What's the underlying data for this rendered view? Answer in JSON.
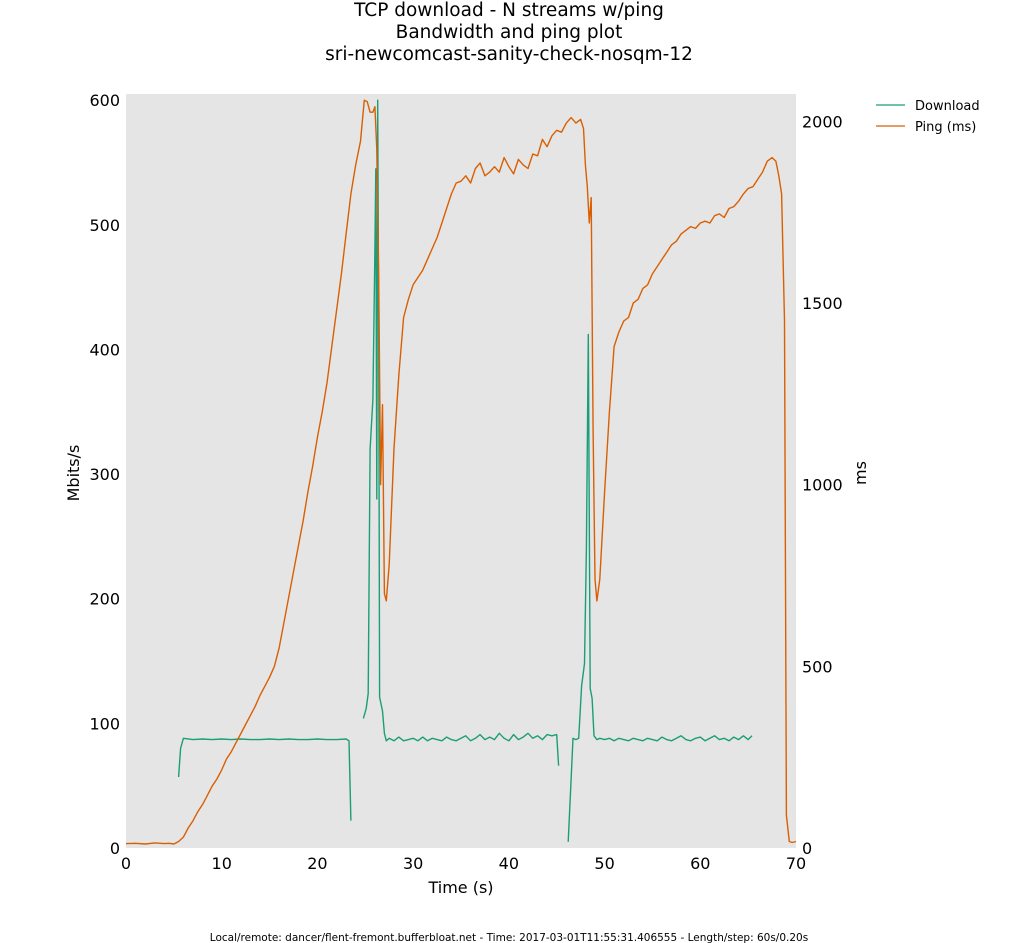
{
  "chart_data": {
    "type": "line",
    "title_lines": [
      "TCP download - N streams w/ping",
      "Bandwidth and ping plot",
      "sri-newcomcast-sanity-check-nosqm-12"
    ],
    "xlabel": "Time (s)",
    "ylabel_left": "Mbits/s",
    "ylabel_right": "ms",
    "xlim": [
      0,
      70
    ],
    "ylim_left": [
      0,
      605
    ],
    "ylim_right": [
      0,
      2075
    ],
    "xticks": [
      0,
      10,
      20,
      30,
      40,
      50,
      60,
      70
    ],
    "yticks_left": [
      0,
      100,
      200,
      300,
      400,
      500,
      600
    ],
    "yticks_right": [
      0,
      500,
      1000,
      1500,
      2000
    ],
    "grid": false,
    "legend_position": "outside-top-right",
    "colors": {
      "download": "#1b9e77",
      "ping": "#d95f02",
      "plot_bg": "#e5e5e5"
    },
    "series": [
      {
        "name": "Download",
        "axis": "left",
        "segments": [
          [
            [
              5.5,
              57
            ],
            [
              5.7,
              80
            ],
            [
              6.0,
              88
            ],
            [
              7,
              87
            ],
            [
              8,
              87.5
            ],
            [
              9,
              87
            ],
            [
              10,
              87.5
            ],
            [
              11,
              87
            ],
            [
              12,
              87.5
            ],
            [
              13,
              87
            ],
            [
              14,
              87
            ],
            [
              15,
              87.5
            ],
            [
              16,
              87
            ],
            [
              17,
              87.5
            ],
            [
              18,
              87
            ],
            [
              19,
              87
            ],
            [
              20,
              87.5
            ],
            [
              21,
              87
            ],
            [
              22,
              87
            ],
            [
              23,
              87.5
            ],
            [
              23.3,
              86
            ],
            [
              23.5,
              22
            ]
          ],
          [
            [
              24.8,
              104
            ],
            [
              25.1,
              112
            ],
            [
              25.3,
              124
            ],
            [
              25.5,
              320
            ],
            [
              25.8,
              360
            ],
            [
              26.0,
              480
            ],
            [
              26.1,
              545
            ],
            [
              26.2,
              280
            ],
            [
              26.3,
              600
            ],
            [
              26.4,
              420
            ],
            [
              26.5,
              121
            ],
            [
              26.8,
              110
            ],
            [
              27.0,
              92
            ],
            [
              27.2,
              86
            ],
            [
              27.5,
              88
            ],
            [
              28,
              86
            ],
            [
              28.5,
              89
            ],
            [
              29,
              86
            ],
            [
              29.5,
              87
            ],
            [
              30,
              88
            ],
            [
              30.5,
              86
            ],
            [
              31,
              89
            ],
            [
              31.5,
              86
            ],
            [
              32,
              88
            ],
            [
              32.5,
              87
            ],
            [
              33,
              86
            ],
            [
              33.5,
              89
            ],
            [
              34,
              87
            ],
            [
              34.5,
              86
            ],
            [
              35,
              88
            ],
            [
              35.5,
              90
            ],
            [
              36,
              86
            ],
            [
              36.5,
              88
            ],
            [
              37,
              91
            ],
            [
              37.5,
              87
            ],
            [
              38,
              89
            ],
            [
              38.5,
              87
            ],
            [
              39,
              92
            ],
            [
              39.5,
              88
            ],
            [
              40,
              86
            ],
            [
              40.5,
              91
            ],
            [
              41,
              87
            ],
            [
              41.5,
              89
            ],
            [
              42,
              92
            ],
            [
              42.5,
              88
            ],
            [
              43,
              90
            ],
            [
              43.5,
              87
            ],
            [
              44,
              91
            ],
            [
              44.5,
              90
            ],
            [
              45,
              91
            ],
            [
              45.2,
              66
            ]
          ],
          [
            [
              46.2,
              5
            ],
            [
              46.5,
              55
            ],
            [
              46.7,
              88
            ],
            [
              47,
              87
            ],
            [
              47.3,
              88
            ],
            [
              47.6,
              130
            ],
            [
              47.9,
              148
            ],
            [
              48.1,
              240
            ],
            [
              48.3,
              412
            ],
            [
              48.5,
              128
            ],
            [
              48.7,
              120
            ],
            [
              48.9,
              90
            ],
            [
              49.2,
              87
            ],
            [
              49.5,
              88
            ],
            [
              50,
              87
            ],
            [
              50.5,
              88
            ],
            [
              51,
              86
            ],
            [
              51.5,
              88
            ],
            [
              52,
              87
            ],
            [
              52.5,
              86
            ],
            [
              53,
              88
            ],
            [
              53.5,
              87
            ],
            [
              54,
              86
            ],
            [
              54.5,
              88
            ],
            [
              55,
              87
            ],
            [
              55.5,
              86
            ],
            [
              56,
              89
            ],
            [
              56.5,
              87
            ],
            [
              57,
              86
            ],
            [
              57.5,
              88
            ],
            [
              58,
              90
            ],
            [
              58.5,
              87
            ],
            [
              59,
              86
            ],
            [
              59.5,
              88
            ],
            [
              60,
              89
            ],
            [
              60.5,
              86
            ],
            [
              61,
              88
            ],
            [
              61.5,
              90
            ],
            [
              62,
              87
            ],
            [
              62.5,
              88
            ],
            [
              63,
              86
            ],
            [
              63.5,
              89
            ],
            [
              64,
              87
            ],
            [
              64.5,
              90
            ],
            [
              65,
              87
            ],
            [
              65.4,
              90
            ]
          ]
        ]
      },
      {
        "name": "Ping (ms)",
        "axis": "right",
        "segments": [
          [
            [
              0,
              12
            ],
            [
              1,
              13
            ],
            [
              2,
              11
            ],
            [
              3,
              14
            ],
            [
              4,
              12
            ],
            [
              4.5,
              13
            ],
            [
              5,
              11
            ],
            [
              5.5,
              18
            ],
            [
              6,
              30
            ],
            [
              6.5,
              55
            ],
            [
              7,
              75
            ],
            [
              7.5,
              100
            ],
            [
              8,
              120
            ],
            [
              8.5,
              145
            ],
            [
              9,
              170
            ],
            [
              9.5,
              190
            ],
            [
              10,
              215
            ],
            [
              10.5,
              245
            ],
            [
              11,
              265
            ],
            [
              11.5,
              290
            ],
            [
              12,
              315
            ],
            [
              12.5,
              340
            ],
            [
              13,
              365
            ],
            [
              13.5,
              390
            ],
            [
              14,
              420
            ],
            [
              14.5,
              445
            ],
            [
              15,
              470
            ],
            [
              15.5,
              500
            ],
            [
              16,
              550
            ],
            [
              16.5,
              620
            ],
            [
              17,
              690
            ],
            [
              17.5,
              760
            ],
            [
              18,
              830
            ],
            [
              18.5,
              900
            ],
            [
              19,
              980
            ],
            [
              19.5,
              1050
            ],
            [
              20,
              1130
            ],
            [
              20.5,
              1200
            ],
            [
              21,
              1280
            ],
            [
              21.5,
              1380
            ],
            [
              22,
              1480
            ],
            [
              22.5,
              1580
            ],
            [
              23,
              1690
            ],
            [
              23.5,
              1800
            ],
            [
              24,
              1880
            ],
            [
              24.5,
              1945
            ],
            [
              24.9,
              2058
            ],
            [
              25.2,
              2054
            ],
            [
              25.5,
              2025
            ],
            [
              25.8,
              2025
            ],
            [
              26.0,
              2040
            ],
            [
              26.2,
              1922
            ],
            [
              26.4,
              1570
            ],
            [
              26.6,
              1000
            ],
            [
              26.8,
              1220
            ],
            [
              27.0,
              700
            ],
            [
              27.2,
              680
            ],
            [
              27.5,
              780
            ],
            [
              28,
              1100
            ],
            [
              28.5,
              1300
            ],
            [
              29,
              1460
            ],
            [
              29.5,
              1510
            ],
            [
              30,
              1550
            ],
            [
              30.5,
              1570
            ],
            [
              31,
              1590
            ],
            [
              31.5,
              1620
            ],
            [
              32,
              1650
            ],
            [
              32.5,
              1680
            ],
            [
              33,
              1720
            ],
            [
              33.5,
              1760
            ],
            [
              34,
              1800
            ],
            [
              34.5,
              1830
            ],
            [
              35,
              1835
            ],
            [
              35.5,
              1850
            ],
            [
              36,
              1830
            ],
            [
              36.5,
              1870
            ],
            [
              37,
              1885
            ],
            [
              37.5,
              1850
            ],
            [
              38,
              1860
            ],
            [
              38.5,
              1875
            ],
            [
              39,
              1860
            ],
            [
              39.5,
              1900
            ],
            [
              40,
              1875
            ],
            [
              40.5,
              1855
            ],
            [
              41,
              1895
            ],
            [
              41.5,
              1880
            ],
            [
              42,
              1870
            ],
            [
              42.5,
              1910
            ],
            [
              43,
              1905
            ],
            [
              43.5,
              1950
            ],
            [
              44,
              1930
            ],
            [
              44.5,
              1960
            ],
            [
              45,
              1975
            ],
            [
              45.5,
              1970
            ],
            [
              46,
              1995
            ],
            [
              46.5,
              2010
            ],
            [
              47,
              1995
            ],
            [
              47.5,
              2005
            ],
            [
              47.8,
              1980
            ],
            [
              48.0,
              1880
            ],
            [
              48.2,
              1820
            ],
            [
              48.4,
              1720
            ],
            [
              48.6,
              1790
            ],
            [
              48.8,
              1150
            ],
            [
              49.0,
              740
            ],
            [
              49.2,
              680
            ],
            [
              49.5,
              740
            ],
            [
              50,
              980
            ],
            [
              50.5,
              1200
            ],
            [
              51,
              1380
            ],
            [
              51.5,
              1420
            ],
            [
              52,
              1450
            ],
            [
              52.5,
              1460
            ],
            [
              53,
              1500
            ],
            [
              53.5,
              1510
            ],
            [
              54,
              1540
            ],
            [
              54.5,
              1550
            ],
            [
              55,
              1580
            ],
            [
              55.5,
              1600
            ],
            [
              56,
              1620
            ],
            [
              56.5,
              1640
            ],
            [
              57,
              1660
            ],
            [
              57.5,
              1670
            ],
            [
              58,
              1690
            ],
            [
              58.5,
              1700
            ],
            [
              59,
              1710
            ],
            [
              59.5,
              1705
            ],
            [
              60,
              1720
            ],
            [
              60.5,
              1725
            ],
            [
              61,
              1720
            ],
            [
              61.5,
              1740
            ],
            [
              62,
              1745
            ],
            [
              62.5,
              1735
            ],
            [
              63,
              1760
            ],
            [
              63.5,
              1765
            ],
            [
              64,
              1780
            ],
            [
              64.5,
              1800
            ],
            [
              65,
              1815
            ],
            [
              65.5,
              1820
            ],
            [
              66,
              1840
            ],
            [
              66.5,
              1860
            ],
            [
              67,
              1890
            ],
            [
              67.5,
              1900
            ],
            [
              67.9,
              1890
            ],
            [
              68.2,
              1850
            ],
            [
              68.5,
              1800
            ],
            [
              68.8,
              1450
            ],
            [
              69.0,
              90
            ],
            [
              69.3,
              18
            ],
            [
              69.6,
              15
            ],
            [
              70,
              18
            ]
          ]
        ]
      }
    ],
    "footer": "Local/remote: dancer/flent-fremont.bufferbloat.net - Time: 2017-03-01T11:55:31.406555 - Length/step: 60s/0.20s"
  }
}
